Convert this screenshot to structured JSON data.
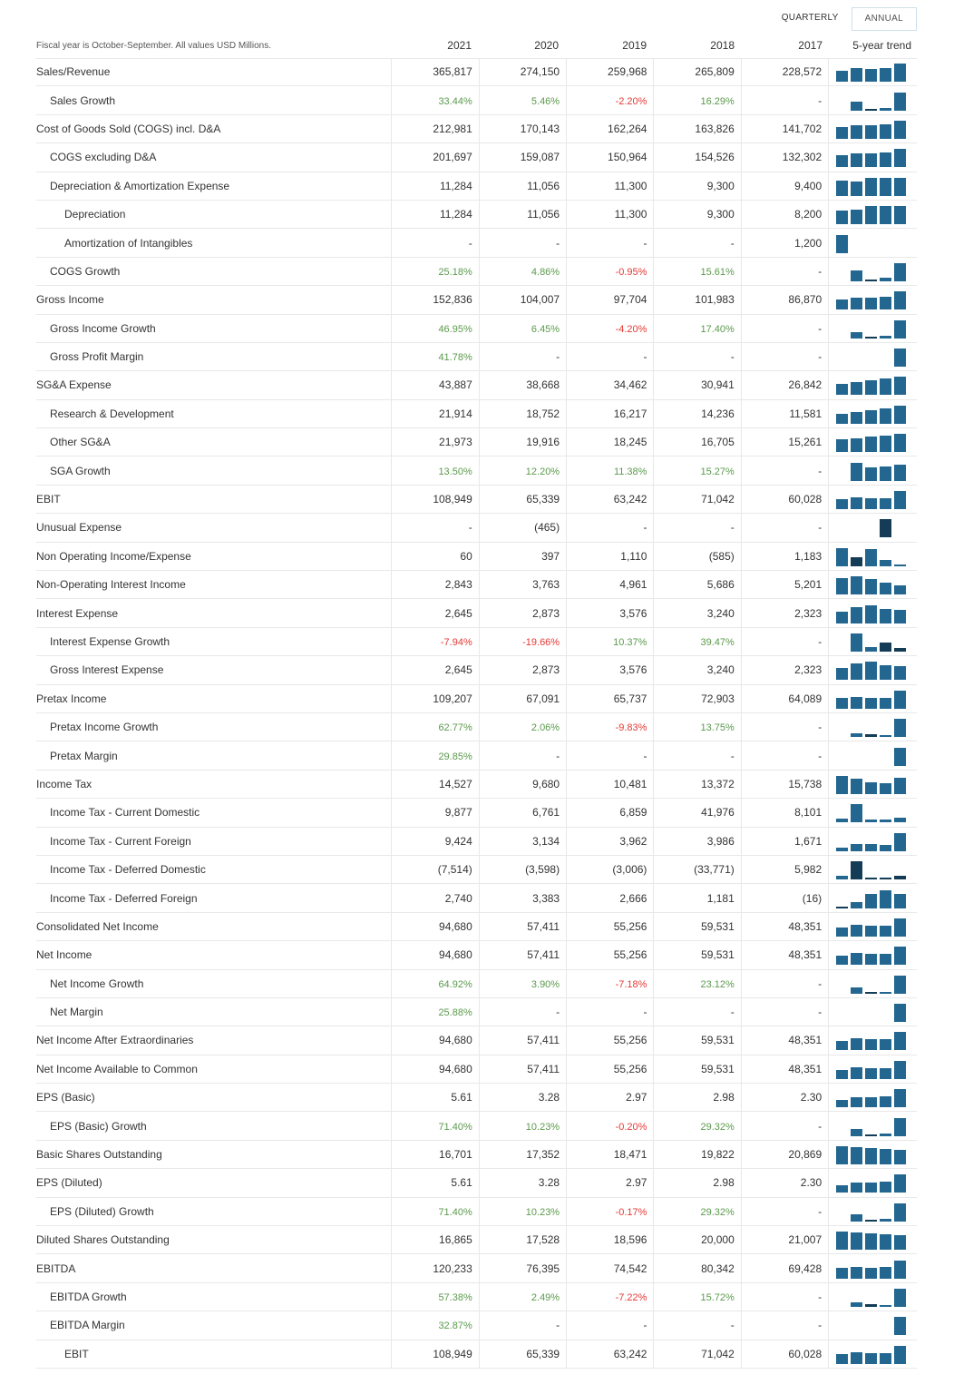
{
  "toggle": {
    "quarterly": "QUARTERLY",
    "annual": "ANNUAL",
    "active": "annual"
  },
  "header": {
    "note": "Fiscal year is October-September. All values USD Millions.",
    "years": [
      "2021",
      "2020",
      "2019",
      "2018",
      "2017"
    ],
    "trend": "5-year trend"
  },
  "colors": {
    "bar": "#236790",
    "bar_negative": "#143c57",
    "positive": "#5b9a4c",
    "negative": "#e53935"
  },
  "rows": [
    {
      "label": "Sales/Revenue",
      "indent": 0,
      "values": [
        "365,817",
        "274,150",
        "259,968",
        "265,809",
        "228,572"
      ]
    },
    {
      "label": "Sales Growth",
      "indent": 1,
      "values": [
        "33.44%",
        "5.46%",
        "-2.20%",
        "16.29%",
        "-"
      ]
    },
    {
      "label": "Cost of Goods Sold (COGS) incl. D&A",
      "indent": 0,
      "values": [
        "212,981",
        "170,143",
        "162,264",
        "163,826",
        "141,702"
      ]
    },
    {
      "label": "COGS excluding D&A",
      "indent": 1,
      "values": [
        "201,697",
        "159,087",
        "150,964",
        "154,526",
        "132,302"
      ]
    },
    {
      "label": "Depreciation & Amortization Expense",
      "indent": 1,
      "values": [
        "11,284",
        "11,056",
        "11,300",
        "9,300",
        "9,400"
      ]
    },
    {
      "label": "Depreciation",
      "indent": 2,
      "values": [
        "11,284",
        "11,056",
        "11,300",
        "9,300",
        "8,200"
      ]
    },
    {
      "label": "Amortization of Intangibles",
      "indent": 2,
      "values": [
        "-",
        "-",
        "-",
        "-",
        "1,200"
      ]
    },
    {
      "label": "COGS Growth",
      "indent": 1,
      "values": [
        "25.18%",
        "4.86%",
        "-0.95%",
        "15.61%",
        "-"
      ]
    },
    {
      "label": "Gross Income",
      "indent": 0,
      "values": [
        "152,836",
        "104,007",
        "97,704",
        "101,983",
        "86,870"
      ]
    },
    {
      "label": "Gross Income Growth",
      "indent": 1,
      "values": [
        "46.95%",
        "6.45%",
        "-4.20%",
        "17.40%",
        "-"
      ]
    },
    {
      "label": "Gross Profit Margin",
      "indent": 1,
      "values": [
        "41.78%",
        "-",
        "-",
        "-",
        "-"
      ]
    },
    {
      "label": "SG&A Expense",
      "indent": 0,
      "values": [
        "43,887",
        "38,668",
        "34,462",
        "30,941",
        "26,842"
      ]
    },
    {
      "label": "Research & Development",
      "indent": 1,
      "values": [
        "21,914",
        "18,752",
        "16,217",
        "14,236",
        "11,581"
      ]
    },
    {
      "label": "Other SG&A",
      "indent": 1,
      "values": [
        "21,973",
        "19,916",
        "18,245",
        "16,705",
        "15,261"
      ]
    },
    {
      "label": "SGA Growth",
      "indent": 1,
      "values": [
        "13.50%",
        "12.20%",
        "11.38%",
        "15.27%",
        "-"
      ]
    },
    {
      "label": "EBIT",
      "indent": 0,
      "values": [
        "108,949",
        "65,339",
        "63,242",
        "71,042",
        "60,028"
      ]
    },
    {
      "label": "Unusual Expense",
      "indent": 0,
      "values": [
        "-",
        "(465)",
        "-",
        "-",
        "-"
      ]
    },
    {
      "label": "Non Operating Income/Expense",
      "indent": 0,
      "values": [
        "60",
        "397",
        "1,110",
        "(585)",
        "1,183"
      ]
    },
    {
      "label": "Non-Operating Interest Income",
      "indent": 0,
      "values": [
        "2,843",
        "3,763",
        "4,961",
        "5,686",
        "5,201"
      ]
    },
    {
      "label": "Interest Expense",
      "indent": 0,
      "values": [
        "2,645",
        "2,873",
        "3,576",
        "3,240",
        "2,323"
      ]
    },
    {
      "label": "Interest Expense Growth",
      "indent": 1,
      "values": [
        "-7.94%",
        "-19.66%",
        "10.37%",
        "39.47%",
        "-"
      ]
    },
    {
      "label": "Gross Interest Expense",
      "indent": 1,
      "values": [
        "2,645",
        "2,873",
        "3,576",
        "3,240",
        "2,323"
      ]
    },
    {
      "label": "Pretax Income",
      "indent": 0,
      "values": [
        "109,207",
        "67,091",
        "65,737",
        "72,903",
        "64,089"
      ]
    },
    {
      "label": "Pretax Income Growth",
      "indent": 1,
      "values": [
        "62.77%",
        "2.06%",
        "-9.83%",
        "13.75%",
        "-"
      ]
    },
    {
      "label": "Pretax Margin",
      "indent": 1,
      "values": [
        "29.85%",
        "-",
        "-",
        "-",
        "-"
      ]
    },
    {
      "label": "Income Tax",
      "indent": 0,
      "values": [
        "14,527",
        "9,680",
        "10,481",
        "13,372",
        "15,738"
      ]
    },
    {
      "label": "Income Tax - Current Domestic",
      "indent": 1,
      "values": [
        "9,877",
        "6,761",
        "6,859",
        "41,976",
        "8,101"
      ]
    },
    {
      "label": "Income Tax - Current Foreign",
      "indent": 1,
      "values": [
        "9,424",
        "3,134",
        "3,962",
        "3,986",
        "1,671"
      ]
    },
    {
      "label": "Income Tax - Deferred Domestic",
      "indent": 1,
      "values": [
        "(7,514)",
        "(3,598)",
        "(3,006)",
        "(33,771)",
        "5,982"
      ]
    },
    {
      "label": "Income Tax - Deferred Foreign",
      "indent": 1,
      "values": [
        "2,740",
        "3,383",
        "2,666",
        "1,181",
        "(16)"
      ]
    },
    {
      "label": "Consolidated Net Income",
      "indent": 0,
      "values": [
        "94,680",
        "57,411",
        "55,256",
        "59,531",
        "48,351"
      ]
    },
    {
      "label": "Net Income",
      "indent": 0,
      "values": [
        "94,680",
        "57,411",
        "55,256",
        "59,531",
        "48,351"
      ]
    },
    {
      "label": "Net Income Growth",
      "indent": 1,
      "values": [
        "64.92%",
        "3.90%",
        "-7.18%",
        "23.12%",
        "-"
      ]
    },
    {
      "label": "Net Margin",
      "indent": 1,
      "values": [
        "25.88%",
        "-",
        "-",
        "-",
        "-"
      ]
    },
    {
      "label": "Net Income After Extraordinaries",
      "indent": 0,
      "values": [
        "94,680",
        "57,411",
        "55,256",
        "59,531",
        "48,351"
      ]
    },
    {
      "label": "Net Income Available to Common",
      "indent": 0,
      "values": [
        "94,680",
        "57,411",
        "55,256",
        "59,531",
        "48,351"
      ]
    },
    {
      "label": "EPS (Basic)",
      "indent": 0,
      "values": [
        "5.61",
        "3.28",
        "2.97",
        "2.98",
        "2.30"
      ]
    },
    {
      "label": "EPS (Basic) Growth",
      "indent": 1,
      "values": [
        "71.40%",
        "10.23%",
        "-0.20%",
        "29.32%",
        "-"
      ]
    },
    {
      "label": "Basic Shares Outstanding",
      "indent": 0,
      "values": [
        "16,701",
        "17,352",
        "18,471",
        "19,822",
        "20,869"
      ]
    },
    {
      "label": "EPS (Diluted)",
      "indent": 0,
      "values": [
        "5.61",
        "3.28",
        "2.97",
        "2.98",
        "2.30"
      ]
    },
    {
      "label": "EPS (Diluted) Growth",
      "indent": 1,
      "values": [
        "71.40%",
        "10.23%",
        "-0.17%",
        "29.32%",
        "-"
      ]
    },
    {
      "label": "Diluted Shares Outstanding",
      "indent": 0,
      "values": [
        "16,865",
        "17,528",
        "18,596",
        "20,000",
        "21,007"
      ]
    },
    {
      "label": "EBITDA",
      "indent": 0,
      "values": [
        "120,233",
        "76,395",
        "74,542",
        "80,342",
        "69,428"
      ]
    },
    {
      "label": "EBITDA Growth",
      "indent": 1,
      "values": [
        "57.38%",
        "2.49%",
        "-7.22%",
        "15.72%",
        "-"
      ]
    },
    {
      "label": "EBITDA Margin",
      "indent": 1,
      "values": [
        "32.87%",
        "-",
        "-",
        "-",
        "-"
      ]
    },
    {
      "label": "EBIT",
      "indent": 2,
      "values": [
        "108,949",
        "65,339",
        "63,242",
        "71,042",
        "60,028"
      ]
    }
  ]
}
